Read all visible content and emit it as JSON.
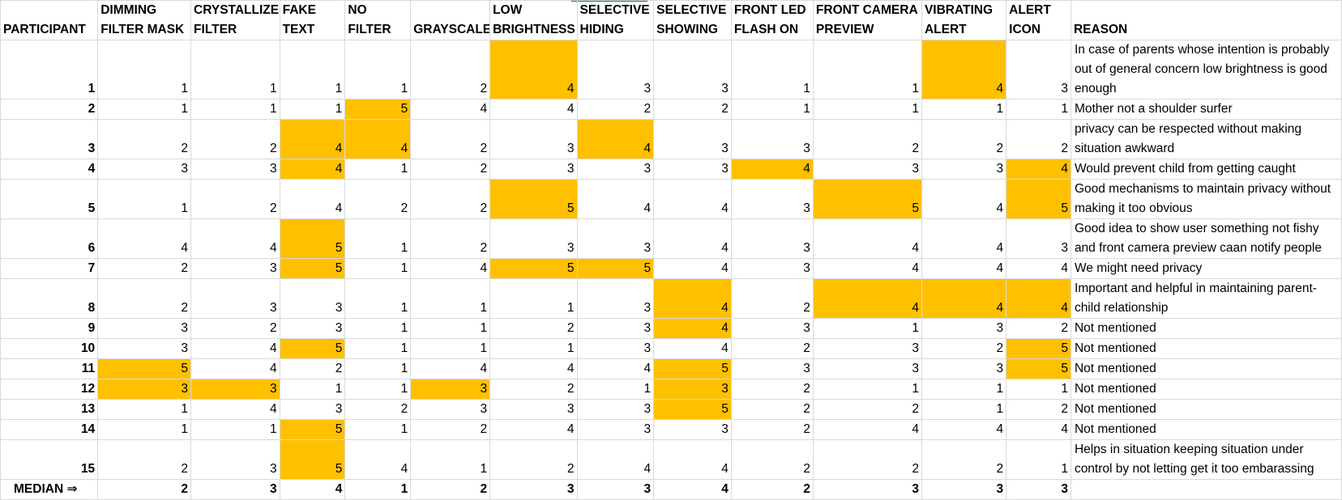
{
  "headers": [
    "PARTICIPANT",
    "DIMMING FILTER MASK",
    "CRYSTALLIZE FILTER",
    "FAKE TEXT",
    "NO FILTER",
    "GRAYSCALE",
    "LOW BRIGHTNESS",
    "SELECTIVE HIDING",
    "SELECTIVE SHOWING",
    "FRONT LED FLASH ON",
    "FRONT CAMERA PREVIEW",
    "VIBRATING ALERT",
    "ALERT ICON",
    "REASON"
  ],
  "rows": [
    {
      "participant": "1",
      "values": [
        "1",
        "1",
        "1",
        "1",
        "2",
        "4",
        "3",
        "3",
        "1",
        "1",
        "4",
        "3"
      ],
      "reason": "In case of parents whose intention is probably out of general concern low brightness is good enough"
    },
    {
      "participant": "2",
      "values": [
        "1",
        "1",
        "1",
        "5",
        "4",
        "4",
        "2",
        "2",
        "1",
        "1",
        "1",
        "1"
      ],
      "reason": "Mother not a shoulder surfer"
    },
    {
      "participant": "3",
      "values": [
        "2",
        "2",
        "4",
        "4",
        "2",
        "3",
        "4",
        "3",
        "3",
        "2",
        "2",
        "2"
      ],
      "reason": "privacy can be respected without making situation awkward"
    },
    {
      "participant": "4",
      "values": [
        "3",
        "3",
        "4",
        "1",
        "2",
        "3",
        "3",
        "3",
        "4",
        "3",
        "3",
        "4"
      ],
      "reason": "Would prevent child from getting caught"
    },
    {
      "participant": "5",
      "values": [
        "1",
        "2",
        "4",
        "2",
        "2",
        "5",
        "4",
        "4",
        "3",
        "5",
        "4",
        "5"
      ],
      "reason": "Good mechanisms to maintain privacy without making it too obvious"
    },
    {
      "participant": "6",
      "values": [
        "4",
        "4",
        "5",
        "1",
        "2",
        "3",
        "3",
        "4",
        "3",
        "4",
        "4",
        "3"
      ],
      "reason": "Good idea to show user something not fishy and front camera preview caan notify people"
    },
    {
      "participant": "7",
      "values": [
        "2",
        "3",
        "5",
        "1",
        "4",
        "5",
        "5",
        "4",
        "3",
        "4",
        "4",
        "4"
      ],
      "reason": "We might need privacy"
    },
    {
      "participant": "8",
      "values": [
        "2",
        "3",
        "3",
        "1",
        "1",
        "1",
        "3",
        "4",
        "2",
        "4",
        "4",
        "4"
      ],
      "reason": "Important and helpful in maintaining parent-child relationship"
    },
    {
      "participant": "9",
      "values": [
        "3",
        "2",
        "3",
        "1",
        "1",
        "2",
        "3",
        "4",
        "3",
        "1",
        "3",
        "2"
      ],
      "reason": "Not mentioned"
    },
    {
      "participant": "10",
      "values": [
        "3",
        "4",
        "5",
        "1",
        "1",
        "1",
        "3",
        "4",
        "2",
        "3",
        "2",
        "5"
      ],
      "reason": "Not mentioned"
    },
    {
      "participant": "11",
      "values": [
        "5",
        "4",
        "2",
        "1",
        "4",
        "4",
        "4",
        "5",
        "3",
        "3",
        "3",
        "5"
      ],
      "reason": "Not mentioned"
    },
    {
      "participant": "12",
      "values": [
        "3",
        "3",
        "1",
        "1",
        "3",
        "2",
        "1",
        "3",
        "2",
        "1",
        "1",
        "1"
      ],
      "reason": "Not mentioned"
    },
    {
      "participant": "13",
      "values": [
        "1",
        "4",
        "3",
        "2",
        "3",
        "3",
        "3",
        "5",
        "2",
        "2",
        "1",
        "2"
      ],
      "reason": "Not mentioned"
    },
    {
      "participant": "14",
      "values": [
        "1",
        "1",
        "5",
        "1",
        "2",
        "4",
        "3",
        "3",
        "2",
        "4",
        "4",
        "4"
      ],
      "reason": "Not mentioned"
    },
    {
      "participant": "15",
      "values": [
        "2",
        "3",
        "5",
        "4",
        "1",
        "2",
        "4",
        "4",
        "2",
        "2",
        "2",
        "1"
      ],
      "reason": "Helps in situation keeping situation under control by not letting get it too embarassing"
    }
  ],
  "median": {
    "label": "MEDIAN ⇒",
    "values": [
      "2",
      "3",
      "4",
      "1",
      "2",
      "3",
      "3",
      "4",
      "2",
      "3",
      "3",
      "3"
    ]
  },
  "colors": {
    "highlight": "#ffc000",
    "grid": "#d9d9d9"
  }
}
